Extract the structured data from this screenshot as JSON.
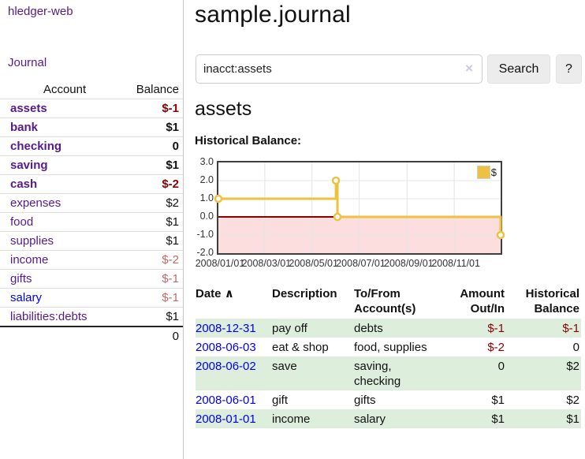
{
  "brand": "hledger-web",
  "nav": {
    "journal_label": "Journal"
  },
  "sidebar": {
    "accounts": {
      "header_account": "Account",
      "header_balance": "Balance",
      "rows": [
        {
          "label": "assets",
          "balance": "$-1"
        },
        {
          "label": "bank",
          "balance": "$1"
        },
        {
          "label": "checking",
          "balance": "0"
        },
        {
          "label": "saving",
          "balance": "$1"
        },
        {
          "label": "cash",
          "balance": "$-2"
        },
        {
          "label": "expenses",
          "balance": "$2"
        },
        {
          "label": "food",
          "balance": "$1"
        },
        {
          "label": "supplies",
          "balance": "$1"
        },
        {
          "label": "income",
          "balance": "$-2"
        },
        {
          "label": "gifts",
          "balance": "$-1"
        },
        {
          "label": "salary",
          "balance": "$-1"
        },
        {
          "label": "liabilities:debts",
          "balance": "$1"
        }
      ],
      "total": "0"
    }
  },
  "main": {
    "title": "sample.journal",
    "search": {
      "value": "inacct:assets",
      "clear_icon": "×",
      "search_button": "Search",
      "help_button": "?"
    },
    "account_heading": "assets",
    "chart_title": "Historical Balance:"
  },
  "chart_data": {
    "type": "line",
    "title": "Historical Balance",
    "xlim": [
      "2008-01-01",
      "2008-12-31"
    ],
    "ylim": [
      -2,
      3
    ],
    "y_ticks": [
      3,
      2,
      1,
      0,
      -1,
      -2
    ],
    "y_tick_labels": [
      "3.0",
      "2.0",
      "1.0",
      "0.0",
      "-1.0",
      "-2.0"
    ],
    "x_ticks": [
      {
        "date": "2008-01-01",
        "label": "2008/01/01"
      },
      {
        "date": "2008-03-01",
        "label": "2008/03/01"
      },
      {
        "date": "2008-05-01",
        "label": "2008/05/01"
      },
      {
        "date": "2008-07-01",
        "label": "2008/07/01"
      },
      {
        "date": "2008-09-01",
        "label": "2008/09/01"
      },
      {
        "date": "2008-11-01",
        "label": "2008/11/01"
      }
    ],
    "grid": true,
    "grid_color": "#e5e5e5",
    "negative_region_color": "#fcdede",
    "zero_line_color": "#8b0000",
    "legend": {
      "label": "$",
      "position": "top-right"
    },
    "series": [
      {
        "name": "$",
        "color": "#edc240",
        "step": true,
        "points": [
          [
            "2008-01-01",
            1
          ],
          [
            "2008-06-01",
            2
          ],
          [
            "2008-06-03",
            0
          ],
          [
            "2008-12-31",
            -1
          ]
        ]
      }
    ]
  },
  "register": {
    "headers": {
      "date": "Date",
      "sort_icon": "∧",
      "description": "Description",
      "accounts": "To/From Account(s)",
      "amount": "Amount Out/In",
      "balance": "Historical Balance"
    },
    "rows": [
      {
        "date": "2008-12-31",
        "description": "pay off",
        "accounts": "debts",
        "amount": "$-1",
        "balance": "$-1"
      },
      {
        "date": "2008-06-03",
        "description": "eat & shop",
        "accounts": "food, supplies",
        "amount": "$-2",
        "balance": "0"
      },
      {
        "date": "2008-06-02",
        "description": "save",
        "accounts": "saving, checking",
        "amount": "0",
        "balance": "$2"
      },
      {
        "date": "2008-06-01",
        "description": "gift",
        "accounts": "gifts",
        "amount": "$1",
        "balance": "$2"
      },
      {
        "date": "2008-01-01",
        "description": "income",
        "accounts": "salary",
        "amount": "$1",
        "balance": "$1"
      }
    ]
  },
  "colors": {
    "accent_purple": "#551a8b",
    "link_blue": "#0000ee",
    "negative_strong": "#8b0000",
    "negative_soft": "#bb6a6a",
    "row_green": "#ddeedd",
    "series_gold": "#edc240"
  }
}
